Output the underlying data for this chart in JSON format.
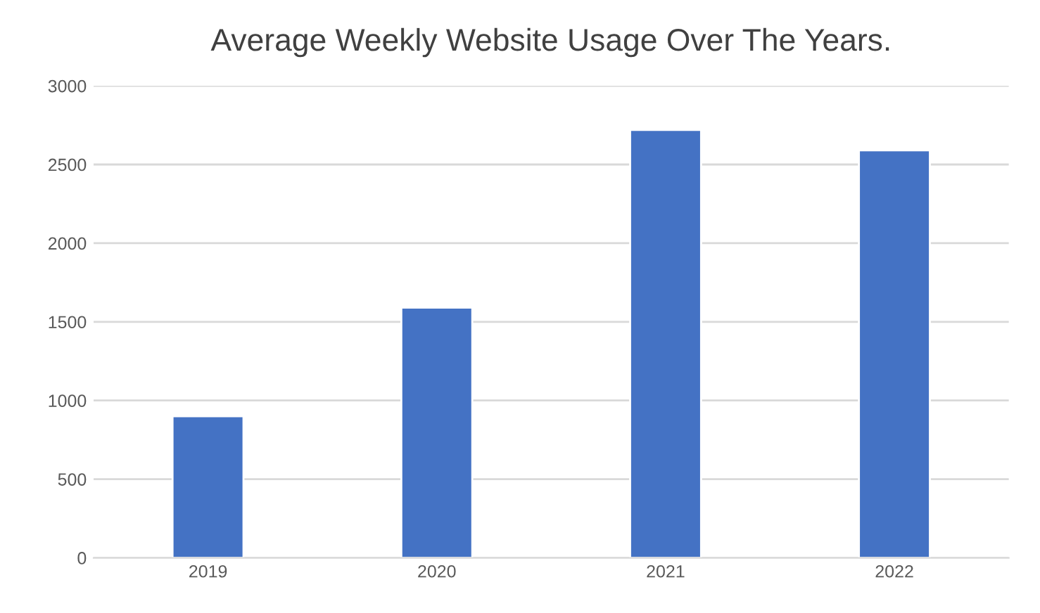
{
  "chart_data": {
    "type": "bar",
    "title": "Average Weekly Website Usage Over The Years.",
    "categories": [
      "2019",
      "2020",
      "2021",
      "2022"
    ],
    "values": [
      900,
      1590,
      2720,
      2590
    ],
    "color": "#4472c4",
    "ylim": [
      0,
      3000
    ],
    "yticks": [
      0,
      500,
      1000,
      1500,
      2000,
      2500,
      3000
    ],
    "grid": "y"
  }
}
